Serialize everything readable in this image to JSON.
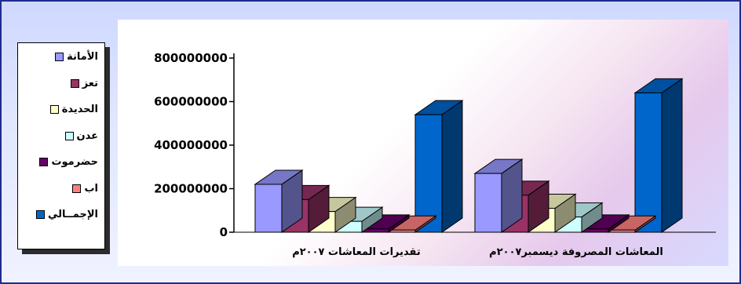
{
  "chart_data": {
    "type": "bar",
    "categories": [
      "تقديرات المعاشات ٢٠٠٧م",
      "المعاشات المصروفة ديسمبر٢٠٠٧م"
    ],
    "series": [
      {
        "name": "الأمانة",
        "values": [
          220000000,
          270000000
        ],
        "color": "#9999ff"
      },
      {
        "name": "تعز",
        "values": [
          150000000,
          170000000
        ],
        "color": "#993366"
      },
      {
        "name": "الحديدة",
        "values": [
          95000000,
          110000000
        ],
        "color": "#ffffcc"
      },
      {
        "name": "عدن",
        "values": [
          50000000,
          70000000
        ],
        "color": "#ccffff"
      },
      {
        "name": "حضرموت",
        "values": [
          15000000,
          15000000
        ],
        "color": "#660066"
      },
      {
        "name": "اب",
        "values": [
          10000000,
          10000000
        ],
        "color": "#ff8080"
      },
      {
        "name": "الإجمــالي",
        "values": [
          540000000,
          640000000
        ],
        "color": "#0066cc"
      }
    ],
    "yticks": [
      "0",
      "200000000",
      "400000000",
      "600000000",
      "800000000"
    ],
    "ylim": [
      0,
      800000000
    ],
    "legend_position": "left",
    "grid": false
  }
}
